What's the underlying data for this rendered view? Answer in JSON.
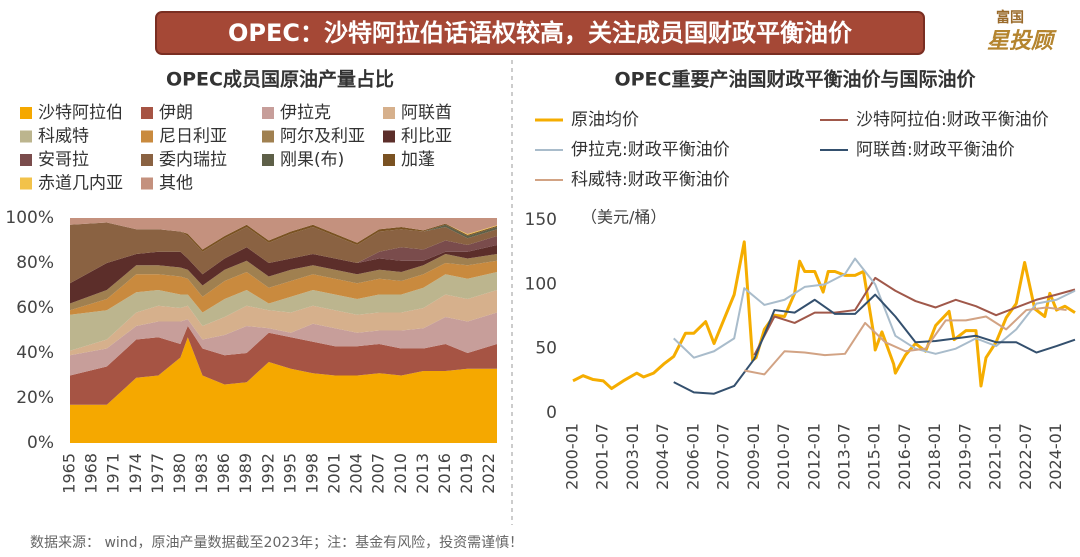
{
  "header": {
    "title": "OPEC：沙特阿拉伯话语权较高，关注成员国财政平衡油价",
    "logo_top": "富国",
    "logo_main": "星投顾"
  },
  "chart_data": [
    {
      "type": "stacked_area",
      "title": "OPEC成员国原油产量占比",
      "x": [
        1965,
        1970,
        1974,
        1977,
        1980,
        1981,
        1983,
        1986,
        1989,
        1992,
        1995,
        1998,
        2001,
        2004,
        2007,
        2010,
        2013,
        2016,
        2019,
        2023
      ],
      "xlim": [
        1965,
        2023
      ],
      "xticks": [
        1965,
        1968,
        1971,
        1974,
        1977,
        1980,
        1983,
        1986,
        1989,
        1992,
        1995,
        1998,
        2001,
        2004,
        2007,
        2010,
        2013,
        2016,
        2019,
        2022
      ],
      "ylim": [
        0,
        100
      ],
      "yticks": [
        {
          "value": 0,
          "label": "0%"
        },
        {
          "value": 20,
          "label": "20%"
        },
        {
          "value": 40,
          "label": "40%"
        },
        {
          "value": 60,
          "label": "60%"
        },
        {
          "value": 80,
          "label": "80%"
        },
        {
          "value": 100,
          "label": "100%"
        }
      ],
      "series": [
        {
          "name": "沙特阿拉伯",
          "color": "#f5a800",
          "values": [
            17,
            17,
            29,
            30,
            38,
            47,
            30,
            26,
            27,
            36,
            33,
            31,
            30,
            30,
            31,
            30,
            32,
            32,
            33,
            33
          ]
        },
        {
          "name": "伊朗",
          "color": "#a65444",
          "values": [
            13,
            17,
            17,
            17,
            6,
            5,
            12,
            13,
            13,
            13,
            14,
            14,
            13,
            13,
            13,
            12,
            10,
            12,
            7,
            11
          ]
        },
        {
          "name": "伊拉克",
          "color": "#c79e9a",
          "values": [
            9,
            8,
            6,
            7,
            10,
            3,
            4,
            9,
            12,
            2,
            2,
            8,
            8,
            6,
            6,
            8,
            9,
            12,
            14,
            14
          ]
        },
        {
          "name": "阿联酋",
          "color": "#d6b08c",
          "values": [
            2,
            4,
            6,
            7,
            6,
            6,
            6,
            8,
            9,
            8,
            9,
            8,
            8,
            8,
            8,
            8,
            9,
            10,
            10,
            10
          ]
        },
        {
          "name": "科威特",
          "color": "#bcb58e",
          "values": [
            16,
            13,
            9,
            7,
            6,
            5,
            6,
            8,
            7,
            3,
            7,
            7,
            7,
            7,
            8,
            8,
            9,
            9,
            9,
            8
          ]
        },
        {
          "name": "尼日利亚",
          "color": "#c98a3e",
          "values": [
            2,
            5,
            8,
            7,
            8,
            7,
            7,
            8,
            8,
            7,
            7,
            7,
            7,
            7,
            7,
            6,
            6,
            5,
            6,
            5
          ]
        },
        {
          "name": "阿尔及利亚",
          "color": "#a08050",
          "values": [
            3,
            4,
            4,
            4,
            4,
            4,
            5,
            5,
            5,
            5,
            5,
            4,
            4,
            4,
            4,
            4,
            4,
            4,
            3,
            3
          ]
        },
        {
          "name": "利比亚",
          "color": "#5c2e2a",
          "values": [
            9,
            12,
            5,
            6,
            7,
            5,
            5,
            5,
            6,
            6,
            5,
            5,
            5,
            5,
            5,
            5,
            2,
            1,
            3,
            4
          ]
        },
        {
          "name": "安哥拉",
          "color": "#7a4c4c",
          "values": [
            0,
            0,
            0,
            0,
            0,
            0,
            0,
            0,
            0,
            0,
            0,
            0,
            0,
            0,
            3,
            6,
            5,
            5,
            3,
            4
          ]
        },
        {
          "name": "委内瑞拉",
          "color": "#8a6242",
          "values": [
            26,
            18,
            11,
            10,
            9,
            10,
            10,
            9,
            9,
            9,
            11,
            12,
            10,
            8,
            9,
            8,
            8,
            6,
            3,
            3
          ]
        },
        {
          "name": "刚果(布)",
          "color": "#5e6048",
          "values": [
            0,
            0,
            0,
            0,
            0,
            0,
            0,
            0,
            0,
            0,
            0,
            0,
            0,
            0,
            0,
            0,
            0,
            1,
            1,
            1
          ]
        },
        {
          "name": "加蓬",
          "color": "#7a5222",
          "values": [
            0,
            0,
            0,
            0,
            0,
            1,
            1,
            1,
            1,
            1,
            1,
            1,
            1,
            1,
            1,
            1,
            0.5,
            0.5,
            0.5,
            0.5
          ]
        },
        {
          "name": "赤道几内亚",
          "color": "#f2c24a",
          "values": [
            0,
            0,
            0,
            0,
            0,
            0,
            0,
            0,
            0,
            0,
            0,
            0,
            0,
            0,
            0,
            0,
            0,
            0,
            0.4,
            0.3
          ]
        },
        {
          "name": "其他",
          "color": "#c4917e",
          "values": [
            3,
            2,
            5,
            5,
            6,
            7,
            14,
            8,
            3,
            10,
            6,
            3,
            7,
            11,
            5,
            4,
            5.5,
            2.5,
            7.1,
            3.2
          ]
        }
      ]
    },
    {
      "type": "line",
      "title": "OPEC重要产油国财政平衡油价与国际油价",
      "y_label": "（美元/桶）",
      "xlim": [
        "2000-01",
        "2024-12"
      ],
      "xticks": [
        "2000-01",
        "2001-07",
        "2003-01",
        "2004-07",
        "2006-01",
        "2007-07",
        "2009-01",
        "2010-07",
        "2012-01",
        "2013-07",
        "2015-01",
        "2016-07",
        "2018-01",
        "2019-07",
        "2021-01",
        "2022-07",
        "2024-01"
      ],
      "ylim": [
        0,
        150
      ],
      "yticks": [
        0,
        50,
        100,
        150
      ],
      "series": [
        {
          "name": "原油均价",
          "color": "#f5ad00",
          "x": [
            "2000-01",
            "2000-07",
            "2001-01",
            "2001-07",
            "2001-12",
            "2002-07",
            "2003-03",
            "2003-07",
            "2004-01",
            "2004-07",
            "2005-01",
            "2005-08",
            "2006-01",
            "2006-08",
            "2007-01",
            "2007-07",
            "2008-01",
            "2008-07",
            "2008-12",
            "2009-02",
            "2009-07",
            "2010-01",
            "2010-07",
            "2011-01",
            "2011-04",
            "2011-07",
            "2012-01",
            "2012-06",
            "2012-09",
            "2013-01",
            "2013-07",
            "2014-01",
            "2014-06",
            "2014-12",
            "2015-01",
            "2015-05",
            "2015-12",
            "2016-01",
            "2016-07",
            "2017-01",
            "2017-07",
            "2018-01",
            "2018-09",
            "2018-12",
            "2019-07",
            "2020-01",
            "2020-04",
            "2020-07",
            "2021-01",
            "2021-07",
            "2022-01",
            "2022-06",
            "2022-12",
            "2023-06",
            "2023-09",
            "2024-01",
            "2024-06",
            "2024-12"
          ],
          "values": [
            25,
            29,
            26,
            25,
            19,
            25,
            31,
            28,
            31,
            38,
            44,
            62,
            62,
            71,
            54,
            73,
            92,
            133,
            41,
            43,
            65,
            76,
            75,
            93,
            118,
            110,
            110,
            94,
            110,
            110,
            107,
            107,
            110,
            62,
            49,
            63,
            38,
            31,
            45,
            54,
            48,
            68,
            79,
            57,
            64,
            64,
            21,
            43,
            55,
            74,
            85,
            117,
            81,
            75,
            93,
            80,
            83,
            78
          ]
        },
        {
          "name": "沙特阿拉伯:财政平衡油价",
          "color": "#a0584a",
          "x": [
            "2009-01",
            "2010-01",
            "2011-01",
            "2012-01",
            "2013-01",
            "2014-01",
            "2015-01",
            "2016-01",
            "2017-01",
            "2018-01",
            "2019-01",
            "2020-01",
            "2021-01",
            "2022-01",
            "2023-01",
            "2024-01",
            "2024-12"
          ],
          "values": [
            45,
            75,
            70,
            78,
            78,
            80,
            105,
            95,
            87,
            82,
            88,
            83,
            76,
            82,
            88,
            92,
            96
          ]
        },
        {
          "name": "伊拉克:财政平衡油价",
          "color": "#a9bccb",
          "x": [
            "2005-01",
            "2006-01",
            "2007-01",
            "2008-01",
            "2008-07",
            "2009-07",
            "2010-07",
            "2011-07",
            "2012-07",
            "2013-07",
            "2014-01",
            "2015-01",
            "2016-01",
            "2017-01",
            "2018-01",
            "2019-01",
            "2020-01",
            "2021-01",
            "2022-01",
            "2023-01",
            "2024-01",
            "2024-12"
          ],
          "values": [
            58,
            43,
            48,
            58,
            97,
            84,
            88,
            98,
            100,
            108,
            120,
            100,
            60,
            50,
            46,
            50,
            58,
            52,
            65,
            85,
            88,
            95
          ]
        },
        {
          "name": "阿联酋:财政平衡油价",
          "color": "#34506e",
          "x": [
            "2005-01",
            "2006-01",
            "2007-01",
            "2008-01",
            "2009-01",
            "2010-01",
            "2011-01",
            "2012-01",
            "2013-01",
            "2014-01",
            "2015-01",
            "2016-01",
            "2017-01",
            "2018-01",
            "2019-01",
            "2020-01",
            "2021-01",
            "2022-01",
            "2023-01",
            "2024-01",
            "2024-12"
          ],
          "values": [
            24,
            16,
            15,
            21,
            42,
            80,
            78,
            88,
            77,
            77,
            92,
            75,
            55,
            56,
            58,
            60,
            55,
            55,
            47,
            52,
            57
          ]
        },
        {
          "name": "科威特:财政平衡油价",
          "color": "#d2a384",
          "x": [
            "2008-07",
            "2009-07",
            "2010-07",
            "2011-07",
            "2012-07",
            "2013-07",
            "2014-07",
            "2015-07",
            "2016-07",
            "2017-07",
            "2018-07",
            "2019-07",
            "2020-07",
            "2021-07",
            "2022-07",
            "2023-07",
            "2024-07"
          ],
          "values": [
            33,
            30,
            48,
            47,
            45,
            46,
            70,
            55,
            48,
            50,
            72,
            72,
            75,
            65,
            80,
            82,
            80
          ]
        }
      ]
    }
  ],
  "footer": "数据来源： wind，原油产量数据截至2023年；注：基金有风险，投资需谨慎！"
}
